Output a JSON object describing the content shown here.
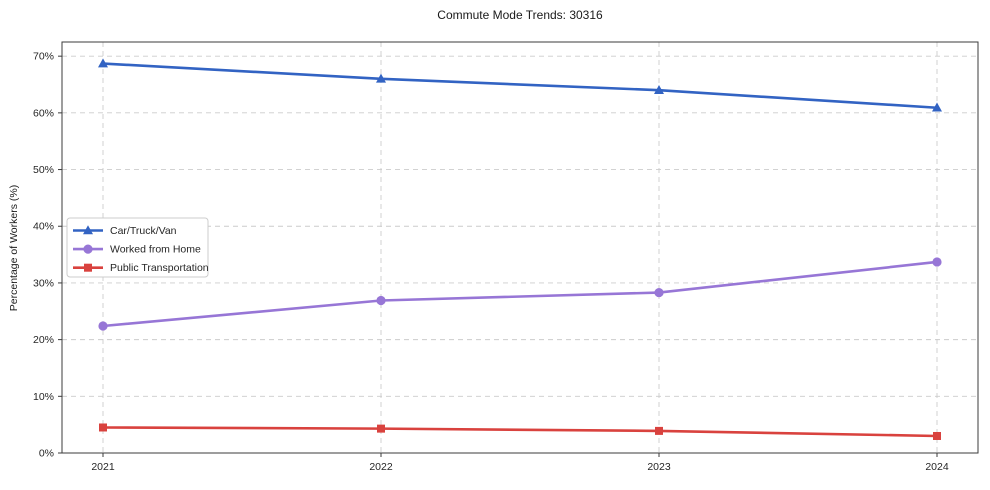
{
  "chart_data": {
    "type": "line",
    "title": "Commute Mode Trends: 30316",
    "xlabel": "",
    "ylabel": "Percentage of Workers (%)",
    "categories": [
      "2021",
      "2022",
      "2023",
      "2024"
    ],
    "series": [
      {
        "name": "Car/Truck/Van",
        "color": "#3263c3",
        "marker": "triangle",
        "values": [
          68.7,
          66.0,
          64.0,
          60.9
        ]
      },
      {
        "name": "Worked from Home",
        "color": "#9776d6",
        "marker": "circle",
        "values": [
          22.4,
          26.9,
          28.3,
          33.7
        ]
      },
      {
        "name": "Public Transportation",
        "color": "#d9423e",
        "marker": "square",
        "values": [
          4.5,
          4.3,
          3.9,
          3.0
        ]
      }
    ],
    "ylim": [
      0,
      72.5
    ],
    "yticks": [
      0,
      10,
      20,
      30,
      40,
      50,
      60,
      70
    ],
    "ytick_labels": [
      "0%",
      "10%",
      "20%",
      "30%",
      "40%",
      "50%",
      "60%",
      "70%"
    ],
    "grid": true,
    "legend_position": "center-left"
  },
  "style": {
    "grid_color": "#cccccc",
    "axis_color": "#3b3b3b",
    "text_color": "#262626",
    "background": "#ffffff",
    "legend_border": "#cccccc",
    "legend_background": "#ffffff"
  }
}
